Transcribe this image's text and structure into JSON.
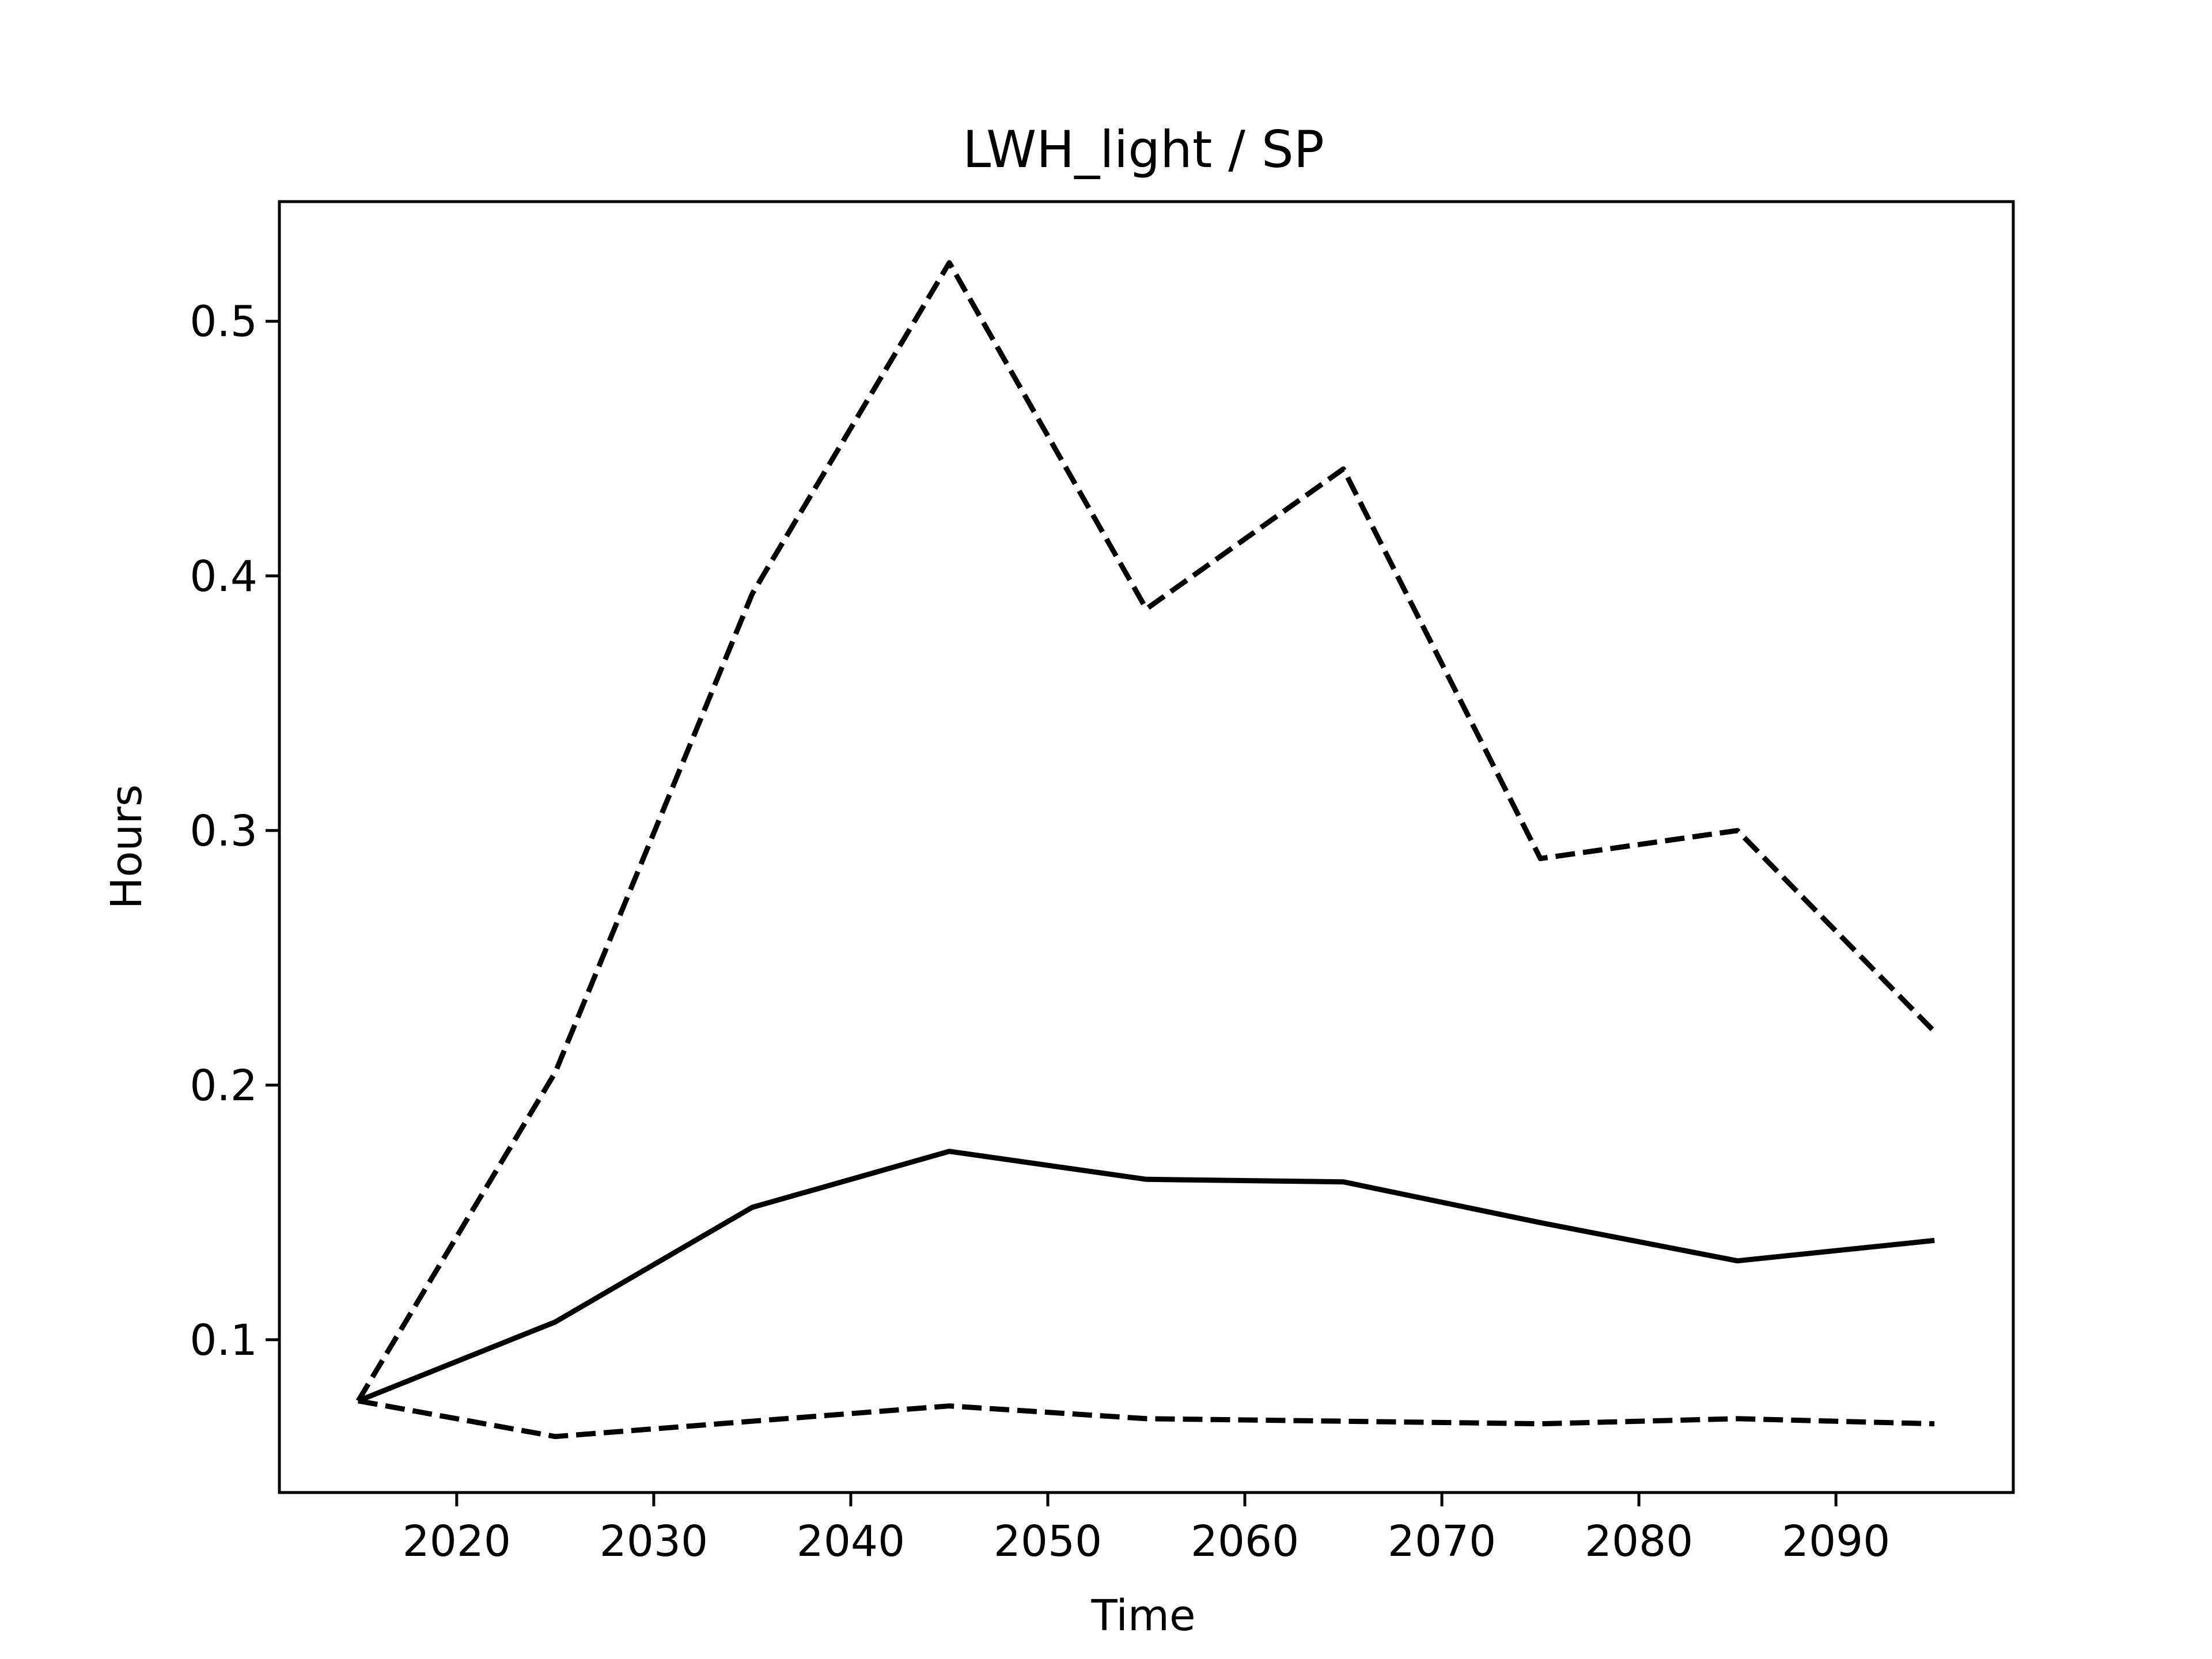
{
  "chart_data": {
    "type": "line",
    "title": "LWH_light / SP",
    "xlabel": "Time",
    "ylabel": "Hours",
    "xlim": [
      2011,
      2099
    ],
    "ylim": [
      0.04,
      0.547
    ],
    "xticks": [
      2020,
      2030,
      2040,
      2050,
      2060,
      2070,
      2080,
      2090
    ],
    "yticks": [
      0.1,
      0.2,
      0.3,
      0.4,
      0.5
    ],
    "ytick_labels": [
      "0.1",
      "0.2",
      "0.3",
      "0.4",
      "0.5"
    ],
    "grid": false,
    "legend": "none",
    "x": [
      2015,
      2025,
      2035,
      2045,
      2055,
      2065,
      2075,
      2085,
      2095
    ],
    "series": [
      {
        "style": "dashed",
        "color": "#000000",
        "values": [
          0.076,
          0.205,
          0.393,
          0.523,
          0.387,
          0.442,
          0.289,
          0.3,
          0.221
        ]
      },
      {
        "style": "solid",
        "color": "#000000",
        "values": [
          0.076,
          0.107,
          0.152,
          0.174,
          0.163,
          0.162,
          0.146,
          0.131,
          0.139
        ]
      },
      {
        "style": "dashed",
        "color": "#000000",
        "values": [
          0.076,
          0.062,
          0.068,
          0.074,
          0.069,
          0.068,
          0.067,
          0.069,
          0.067
        ]
      }
    ]
  }
}
